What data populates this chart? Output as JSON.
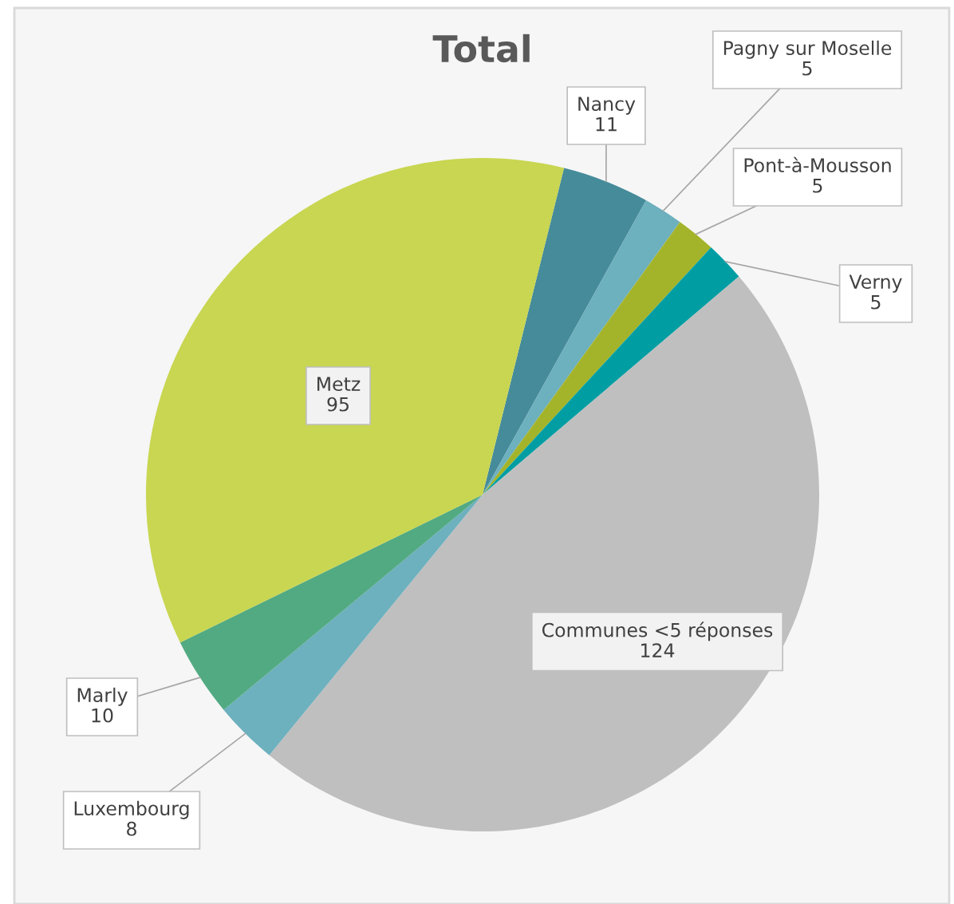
{
  "chart_data": {
    "type": "pie",
    "title": "Total",
    "categories": [
      "Nancy",
      "Pagny sur Moselle",
      "Pont-à-Mousson",
      "Verny",
      "Communes <5 réponses",
      "Luxembourg",
      "Marly",
      "Metz"
    ],
    "values": [
      11,
      5,
      5,
      5,
      124,
      8,
      10,
      95
    ],
    "colors": [
      "#468b9a",
      "#6db0be",
      "#a4b42a",
      "#009ea3",
      "#bfbfbf",
      "#6db0be",
      "#52aa82",
      "#c8d651"
    ],
    "data_labels": true
  }
}
